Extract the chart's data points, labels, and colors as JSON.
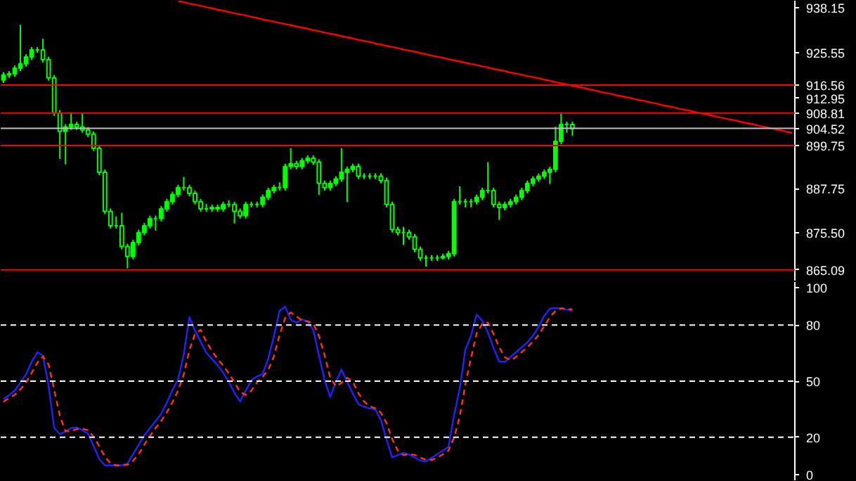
{
  "chart_data": [
    {
      "type": "candlestick",
      "color": "#00ff00",
      "ylim": [
        862.1,
        940.1
      ],
      "tick_labels": "y",
      "grid": false,
      "yticks": [
        938.15,
        925.55,
        912.95,
        887.75,
        {
          "value": 875.5,
          "label": "875.50"
        }
      ],
      "categories": [
        null,
        null,
        null,
        null,
        null,
        null,
        null,
        null,
        null,
        null,
        null,
        null,
        null,
        null,
        null,
        null,
        null,
        null,
        null,
        null,
        null,
        null,
        null,
        null,
        null,
        null,
        null,
        null,
        null,
        null,
        null,
        null,
        null,
        null,
        null,
        null,
        null,
        null,
        null,
        null,
        null,
        null,
        null,
        null,
        null,
        null,
        null,
        null,
        null,
        null,
        null,
        null,
        null,
        null,
        null,
        null,
        null,
        null,
        null,
        null,
        null,
        null,
        null,
        null,
        null,
        null,
        null,
        null,
        null,
        null,
        null,
        null,
        null,
        null,
        null,
        null,
        null,
        null,
        null,
        null,
        null,
        null,
        null,
        null,
        null,
        null,
        null,
        null,
        null,
        null,
        null,
        null,
        null,
        null,
        null,
        null,
        null,
        null,
        null,
        null,
        null,
        null,
        null,
        null,
        null,
        null,
        null,
        null,
        null,
        null,
        null,
        null,
        null,
        null,
        null,
        null,
        null,
        null,
        null,
        null,
        null,
        null,
        null,
        null,
        null,
        null,
        null,
        null,
        null,
        null,
        null,
        null,
        null,
        null,
        null,
        null,
        null,
        null,
        null,
        null,
        null
      ],
      "ohlc": [
        [
          918.0,
          920.2,
          917.2,
          919.4
        ],
        [
          919.4,
          920.5,
          918.6,
          919.7
        ],
        [
          919.7,
          922.1,
          918.9,
          921.3
        ],
        [
          921.3,
          933.4,
          920.5,
          922.5
        ],
        [
          922.5,
          925.2,
          921.7,
          924.4
        ],
        [
          924.4,
          927.2,
          923.6,
          926.4
        ],
        [
          926.4,
          927.2,
          925.6,
          926.4
        ],
        [
          926.4,
          929.5,
          922.9,
          923.7
        ],
        [
          923.7,
          924.5,
          917.8,
          918.6
        ],
        [
          918.6,
          919.4,
          908.0,
          908.8
        ],
        [
          908.8,
          909.6,
          896.0,
          903.7
        ],
        [
          903.7,
          905.7,
          894.5,
          904.9
        ],
        [
          904.9,
          909.0,
          904.1,
          905.6
        ],
        [
          905.6,
          906.4,
          904.1,
          904.9
        ],
        [
          904.9,
          908.8,
          903.3,
          904.1
        ],
        [
          904.1,
          904.9,
          902.1,
          902.9
        ],
        [
          902.9,
          903.7,
          898.2,
          899.0
        ],
        [
          899.0,
          899.8,
          891.5,
          892.3
        ],
        [
          892.3,
          893.1,
          880.6,
          881.4
        ],
        [
          881.4,
          882.2,
          876.6,
          877.4
        ],
        [
          877.4,
          880.0,
          876.6,
          877.4
        ],
        [
          877.4,
          881.0,
          870.8,
          871.6
        ],
        [
          871.6,
          872.4,
          865.5,
          868.8
        ],
        [
          868.8,
          873.5,
          868.0,
          872.7
        ],
        [
          872.7,
          876.3,
          871.9,
          875.5
        ],
        [
          875.5,
          878.2,
          874.7,
          877.4
        ],
        [
          877.4,
          880.2,
          876.6,
          879.4
        ],
        [
          879.4,
          880.2,
          876.0,
          879.4
        ],
        [
          879.4,
          882.9,
          878.6,
          882.1
        ],
        [
          882.1,
          884.9,
          881.3,
          884.1
        ],
        [
          884.1,
          886.9,
          883.3,
          886.1
        ],
        [
          886.1,
          888.8,
          885.3,
          888.0
        ],
        [
          888.0,
          891.0,
          887.2,
          888.0
        ],
        [
          888.0,
          888.8,
          885.6,
          886.4
        ],
        [
          886.4,
          887.2,
          883.3,
          884.1
        ],
        [
          884.1,
          884.9,
          881.3,
          882.1
        ],
        [
          882.1,
          883.5,
          881.3,
          882.1
        ],
        [
          882.1,
          883.3,
          881.3,
          882.5
        ],
        [
          882.5,
          883.3,
          881.3,
          882.1
        ],
        [
          882.1,
          884.1,
          881.3,
          883.3
        ],
        [
          883.3,
          884.5,
          882.5,
          883.3
        ],
        [
          883.3,
          884.1,
          878.0,
          881.4
        ],
        [
          881.4,
          882.2,
          879.4,
          880.2
        ],
        [
          880.2,
          884.1,
          879.4,
          883.3
        ],
        [
          883.3,
          884.1,
          882.5,
          883.3
        ],
        [
          883.3,
          884.1,
          882.5,
          883.3
        ],
        [
          883.3,
          886.1,
          882.5,
          885.3
        ],
        [
          885.3,
          888.0,
          884.5,
          887.2
        ],
        [
          887.2,
          888.8,
          886.4,
          888.0
        ],
        [
          888.0,
          889.5,
          887.2,
          888.0
        ],
        [
          888.0,
          894.7,
          887.2,
          893.9
        ],
        [
          893.9,
          899.0,
          893.1,
          894.7
        ],
        [
          894.7,
          895.5,
          893.1,
          893.9
        ],
        [
          893.9,
          896.3,
          893.1,
          895.5
        ],
        [
          895.5,
          897.0,
          894.7,
          896.2
        ],
        [
          896.2,
          897.0,
          894.3,
          895.1
        ],
        [
          895.1,
          895.9,
          886.0,
          889.2
        ],
        [
          889.2,
          890.0,
          887.2,
          888.0
        ],
        [
          888.0,
          890.0,
          887.2,
          889.2
        ],
        [
          889.2,
          891.2,
          888.4,
          890.4
        ],
        [
          890.4,
          899.0,
          889.6,
          892.3
        ],
        [
          892.3,
          893.9,
          884.0,
          893.1
        ],
        [
          893.1,
          894.7,
          892.3,
          893.9
        ],
        [
          893.9,
          894.7,
          890.4,
          891.2
        ],
        [
          891.2,
          892.0,
          890.4,
          891.2
        ],
        [
          891.2,
          892.0,
          890.4,
          891.2
        ],
        [
          891.2,
          892.0,
          890.4,
          891.2
        ],
        [
          891.2,
          892.0,
          889.2,
          890.0
        ],
        [
          890.0,
          890.8,
          882.5,
          883.3
        ],
        [
          883.3,
          884.1,
          875.5,
          876.3
        ],
        [
          876.3,
          877.1,
          874.7,
          875.5
        ],
        [
          875.5,
          877.1,
          872.0,
          875.5
        ],
        [
          875.5,
          876.3,
          873.5,
          874.3
        ],
        [
          874.3,
          875.1,
          870.0,
          870.8
        ],
        [
          870.8,
          871.6,
          867.6,
          868.4
        ],
        [
          868.4,
          869.2,
          866.0,
          868.4
        ],
        [
          868.4,
          869.2,
          867.6,
          868.4
        ],
        [
          868.4,
          869.2,
          867.6,
          868.4
        ],
        [
          868.4,
          869.6,
          868.0,
          868.8
        ],
        [
          868.8,
          870.4,
          868.0,
          869.6
        ],
        [
          869.6,
          884.9,
          868.8,
          884.1
        ],
        [
          884.1,
          888.4,
          883.3,
          884.1
        ],
        [
          884.1,
          884.9,
          882.5,
          884.1
        ],
        [
          884.1,
          884.9,
          882.5,
          884.1
        ],
        [
          884.1,
          886.1,
          883.3,
          885.3
        ],
        [
          885.3,
          888.0,
          884.5,
          887.2
        ],
        [
          887.2,
          895.1,
          886.4,
          887.2
        ],
        [
          887.2,
          888.0,
          882.5,
          883.3
        ],
        [
          883.3,
          884.1,
          879.0,
          882.5
        ],
        [
          882.5,
          884.1,
          881.7,
          883.3
        ],
        [
          883.3,
          884.9,
          882.5,
          884.1
        ],
        [
          884.1,
          886.1,
          883.3,
          885.3
        ],
        [
          885.3,
          888.0,
          884.5,
          887.2
        ],
        [
          887.2,
          890.0,
          886.4,
          889.2
        ],
        [
          889.2,
          891.2,
          888.4,
          890.4
        ],
        [
          890.4,
          892.0,
          889.6,
          891.2
        ],
        [
          891.2,
          893.1,
          890.4,
          892.3
        ],
        [
          892.3,
          893.9,
          889.0,
          893.1
        ],
        [
          893.1,
          905.0,
          892.3,
          900.9
        ],
        [
          900.9,
          909.0,
          900.1,
          905.6
        ],
        [
          905.6,
          906.4,
          903.3,
          905.6
        ],
        [
          905.6,
          906.4,
          902.5,
          904.5
        ],
        null,
        null,
        null,
        null,
        null,
        null,
        null,
        null,
        null,
        null,
        null,
        null,
        null,
        null,
        null,
        null,
        null,
        null,
        null,
        null,
        null,
        null,
        null,
        null,
        null,
        null,
        null,
        null,
        null,
        null,
        null,
        null,
        null,
        null,
        null,
        null,
        null,
        null,
        null
      ],
      "series": [
        {
          "type": "line",
          "color": "#ff0000",
          "values": [
            null,
            null,
            null,
            null,
            null,
            null,
            null,
            null,
            null,
            null,
            null,
            null,
            null,
            null,
            null,
            null,
            null,
            null,
            null,
            null,
            null,
            null,
            null,
            null,
            null,
            null,
            null,
            null,
            null,
            null,
            null,
            940.0,
            939.7,
            939.3,
            939.0,
            938.7,
            938.3,
            938.0,
            937.6,
            937.3,
            937.0,
            936.6,
            936.3,
            936.0,
            935.6,
            935.3,
            934.9,
            934.6,
            934.3,
            933.9,
            933.6,
            933.3,
            932.9,
            932.6,
            932.3,
            931.9,
            931.6,
            931.2,
            930.9,
            930.6,
            930.2,
            929.9,
            929.6,
            929.2,
            928.9,
            928.6,
            928.2,
            927.9,
            927.5,
            927.2,
            926.9,
            926.5,
            926.2,
            925.9,
            925.5,
            925.2,
            924.8,
            924.5,
            924.2,
            923.8,
            923.5,
            923.2,
            922.8,
            922.5,
            922.2,
            921.8,
            921.5,
            921.1,
            920.8,
            920.5,
            920.1,
            919.8,
            919.5,
            919.1,
            918.8,
            918.5,
            918.1,
            917.8,
            917.4,
            917.1,
            916.8,
            916.4,
            916.1,
            915.8,
            915.4,
            915.1,
            914.7,
            914.4,
            914.1,
            913.7,
            913.4,
            913.1,
            912.7,
            912.4,
            912.1,
            911.7,
            911.4,
            911.0,
            910.7,
            910.4,
            910.0,
            909.7,
            909.4,
            909.0,
            908.7,
            908.4,
            908.0,
            907.7,
            907.3,
            907.0,
            906.7,
            906.3,
            906.0,
            905.7,
            905.3,
            905.0,
            904.6,
            904.3,
            904.0,
            903.6,
            903.3
          ]
        }
      ],
      "ref_lines": [
        {
          "axis": "y",
          "value": 916.56,
          "label": "916.56",
          "color": "#ff0000"
        },
        {
          "axis": "y",
          "value": 908.81,
          "label": "908.81",
          "color": "#ff0000"
        },
        {
          "axis": "y",
          "value": 904.52,
          "label": "904.52",
          "color": "#c0c0c0"
        },
        {
          "axis": "y",
          "value": 899.75,
          "label": "899.75",
          "color": "#ff0000"
        },
        {
          "axis": "y",
          "value": 865.09,
          "label": "865.09",
          "color": "#ff0000"
        }
      ]
    },
    {
      "type": "line",
      "ylim": [
        -3,
        103
      ],
      "yticks": [
        0,
        20,
        50,
        80,
        100
      ],
      "tick_labels": "y",
      "grid": false,
      "categories": [
        null,
        null,
        null,
        null,
        null,
        null,
        null,
        null,
        null,
        null,
        null,
        null,
        null,
        null,
        null,
        null,
        null,
        null,
        null,
        null,
        null,
        null,
        null,
        null,
        null,
        null,
        null,
        null,
        null,
        null,
        null,
        null,
        null,
        null,
        null,
        null,
        null,
        null,
        null,
        null,
        null,
        null,
        null,
        null,
        null,
        null,
        null,
        null,
        null,
        null,
        null,
        null,
        null,
        null,
        null,
        null,
        null,
        null,
        null,
        null,
        null,
        null,
        null,
        null,
        null,
        null,
        null,
        null,
        null,
        null,
        null,
        null,
        null,
        null,
        null,
        null,
        null,
        null,
        null,
        null,
        null,
        null,
        null,
        null,
        null,
        null,
        null,
        null,
        null,
        null,
        null,
        null,
        null,
        null,
        null,
        null,
        null,
        null,
        null,
        null,
        null,
        null,
        null,
        null,
        null,
        null,
        null,
        null,
        null,
        null,
        null,
        null,
        null,
        null,
        null,
        null,
        null,
        null,
        null,
        null,
        null,
        null,
        null,
        null,
        null,
        null,
        null,
        null,
        null,
        null,
        null,
        null,
        null,
        null,
        null,
        null,
        null,
        null,
        null,
        null,
        null
      ],
      "series": [
        {
          "color": "#2222ff",
          "line_style": "solid",
          "values": [
            40.4,
            42.6,
            45.0,
            49.2,
            53.7,
            60.4,
            65.5,
            63.6,
            47.5,
            25.0,
            21.7,
            23.1,
            24.9,
            25.3,
            23.7,
            22.0,
            15.2,
            8.4,
            5,
            5,
            5,
            5,
            6.0,
            11.0,
            16.0,
            21.0,
            24.9,
            28.7,
            32.5,
            38.6,
            45.3,
            51.1,
            64.3,
            84.2,
            77,
            71.1,
            65.2,
            61.9,
            58.5,
            54.6,
            49.6,
            43.7,
            39.2,
            44.9,
            50.5,
            52.5,
            53.8,
            62.0,
            73.9,
            87.5,
            89.9,
            82.8,
            81.3,
            83.0,
            81.8,
            77.2,
            63.8,
            50.6,
            41.5,
            49.6,
            56.2,
            49.6,
            43.5,
            37.7,
            36.3,
            35.4,
            34.9,
            29.2,
            18.8,
            9.3,
            10.5,
            11.7,
            10.8,
            9.2,
            7.5,
            7.1,
            9.0,
            10.9,
            12.8,
            14.9,
            31.9,
            46.1,
            66.8,
            74.3,
            85.6,
            82.3,
            76.0,
            67.7,
            60.5,
            60.3,
            62.9,
            65.5,
            68.1,
            70.7,
            74.3,
            79.0,
            85.0,
            88.7,
            89.1,
            88.9,
            88.2,
            87.8,
            null,
            null,
            null,
            null,
            null,
            null,
            null,
            null,
            null,
            null,
            null,
            null,
            null,
            null,
            null,
            null,
            null,
            null,
            null,
            null,
            null,
            null,
            null,
            null,
            null,
            null,
            null,
            null,
            null,
            null,
            null,
            null,
            null,
            null,
            null,
            null,
            null,
            null,
            null
          ]
        },
        {
          "color": "#ff3322",
          "line_style": "dashed",
          "values": [
            39,
            41,
            42.7,
            45.6,
            49.3,
            54.4,
            59.9,
            63.2,
            58.9,
            45.4,
            31.4,
            23.3,
            23.2,
            24.4,
            24.6,
            23.7,
            20.3,
            15.2,
            9.5,
            6.1,
            5,
            5,
            5.3,
            7.3,
            11,
            16,
            20.6,
            24.9,
            28.7,
            33.3,
            38.8,
            45,
            53.6,
            66.5,
            75.2,
            77.4,
            71.1,
            66.1,
            61.9,
            58.3,
            54.2,
            49.3,
            44.2,
            42.6,
            44.9,
            49.3,
            52.3,
            56.1,
            63.2,
            74.5,
            83.8,
            86.7,
            84.7,
            82.4,
            82.0,
            80.7,
            74.3,
            63.9,
            52,
            47.2,
            49.1,
            51.8,
            49.8,
            43.6,
            39.2,
            36.5,
            35.5,
            33.2,
            27.6,
            19.1,
            12.9,
            10.5,
            11,
            10.6,
            9.2,
            7.9,
            7.9,
            9,
            10.9,
            12.9,
            19.9,
            31,
            48.3,
            62.4,
            75.6,
            80.7,
            81.3,
            75.3,
            68.1,
            62.8,
            61.2,
            62.9,
            65.5,
            68.1,
            71,
            74.7,
            79.4,
            84.2,
            87.6,
            88.9,
            88.7,
            88.3,
            null,
            null,
            null,
            null,
            null,
            null,
            null,
            null,
            null,
            null,
            null,
            null,
            null,
            null,
            null,
            null,
            null,
            null,
            null,
            null,
            null,
            null,
            null,
            null,
            null,
            null,
            null,
            null,
            null,
            null,
            null,
            null,
            null,
            null,
            null,
            null,
            null,
            null,
            null
          ]
        }
      ],
      "ref_lines": [
        {
          "axis": "y",
          "value": 20,
          "color": "#ffffff",
          "line_style": "dashed"
        },
        {
          "axis": "y",
          "value": 50,
          "color": "#ffffff",
          "line_style": "dashed"
        },
        {
          "axis": "y",
          "value": 80,
          "color": "#ffffff",
          "line_style": "dashed"
        }
      ]
    }
  ]
}
